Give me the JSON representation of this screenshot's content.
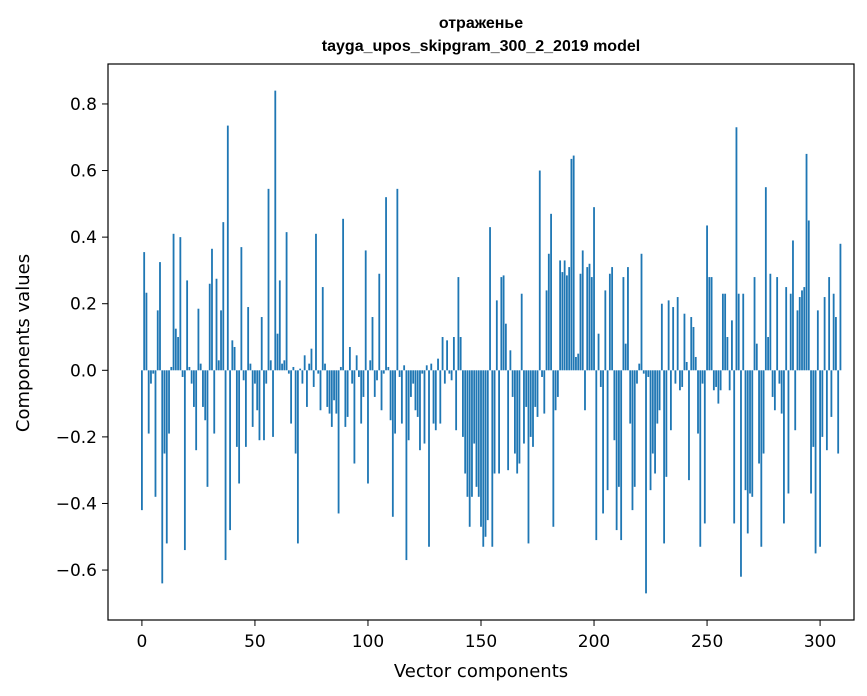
{
  "colors": {
    "bar": "#1f77b4",
    "axis": "#000000",
    "background": "#ffffff"
  },
  "chart_data": {
    "type": "bar",
    "title": "отраженье",
    "subtitle": "tayga_upos_skipgram_300_2_2019 model",
    "xlabel": "Vector components",
    "ylabel": "Components values",
    "xlim": [
      -15,
      315
    ],
    "ylim": [
      -0.75,
      0.92
    ],
    "xticks": [
      0,
      50,
      100,
      150,
      200,
      250,
      300
    ],
    "xtick_labels": [
      "0",
      "50",
      "100",
      "150",
      "200",
      "250",
      "300"
    ],
    "yticks": [
      -0.6,
      -0.4,
      -0.2,
      0.0,
      0.2,
      0.4,
      0.6,
      0.8
    ],
    "ytick_labels": [
      "−0.6",
      "−0.4",
      "−0.2",
      "0.0",
      "0.2",
      "0.4",
      "0.6",
      "0.8"
    ],
    "grid": false,
    "values": [
      -0.42,
      0.355,
      0.233,
      -0.19,
      -0.04,
      -0.01,
      -0.38,
      0.18,
      0.325,
      -0.64,
      -0.25,
      -0.52,
      -0.19,
      0.01,
      0.41,
      0.125,
      0.1,
      0.4,
      -0.02,
      -0.54,
      0.27,
      0.01,
      -0.04,
      -0.11,
      -0.24,
      0.185,
      0.02,
      -0.11,
      -0.15,
      -0.35,
      0.26,
      0.365,
      -0.19,
      0.275,
      0.03,
      0.18,
      0.445,
      -0.57,
      0.735,
      -0.48,
      0.09,
      0.07,
      -0.23,
      -0.34,
      0.37,
      -0.03,
      -0.23,
      0.19,
      0.02,
      -0.17,
      -0.04,
      -0.12,
      -0.21,
      0.16,
      -0.21,
      -0.04,
      0.545,
      0.03,
      -0.2,
      0.84,
      0.11,
      0.27,
      0.02,
      0.03,
      0.415,
      -0.01,
      -0.16,
      0.01,
      -0.25,
      -0.52,
      0.005,
      -0.04,
      0.045,
      -0.11,
      0.02,
      0.065,
      -0.05,
      0.41,
      -0.01,
      -0.12,
      0.25,
      0.02,
      -0.11,
      -0.13,
      -0.17,
      -0.09,
      -0.13,
      -0.43,
      0.01,
      0.455,
      -0.17,
      -0.14,
      0.07,
      -0.04,
      -0.28,
      0.045,
      -0.02,
      -0.16,
      -0.08,
      0.36,
      -0.34,
      0.03,
      0.16,
      -0.08,
      -0.03,
      0.29,
      -0.12,
      -0.01,
      0.52,
      0.01,
      -0.15,
      -0.44,
      -0.19,
      0.545,
      -0.02,
      -0.16,
      0.015,
      -0.57,
      -0.21,
      -0.08,
      -0.04,
      -0.12,
      -0.14,
      -0.24,
      -0.01,
      -0.22,
      0.015,
      -0.53,
      0.02,
      -0.16,
      -0.18,
      0.035,
      -0.16,
      0.1,
      -0.04,
      0.09,
      -0.01,
      -0.03,
      0.1,
      -0.18,
      0.28,
      0.1,
      -0.2,
      -0.31,
      -0.38,
      -0.47,
      -0.38,
      -0.22,
      -0.35,
      -0.38,
      -0.47,
      -0.53,
      -0.5,
      -0.45,
      0.43,
      -0.53,
      -0.31,
      0.21,
      -0.31,
      0.28,
      0.285,
      0.14,
      -0.3,
      0.06,
      -0.08,
      -0.25,
      -0.31,
      -0.28,
      0.23,
      -0.22,
      -0.11,
      -0.52,
      -0.2,
      -0.23,
      -0.11,
      -0.14,
      0.6,
      -0.02,
      -0.13,
      0.24,
      0.35,
      0.47,
      -0.47,
      -0.12,
      -0.08,
      0.33,
      0.295,
      0.33,
      0.285,
      0.31,
      0.635,
      0.645,
      0.04,
      0.05,
      0.29,
      0.36,
      -0.12,
      0.31,
      0.32,
      0.28,
      0.49,
      -0.51,
      0.11,
      -0.05,
      -0.43,
      0.24,
      -0.36,
      0.29,
      0.31,
      -0.21,
      -0.48,
      -0.35,
      -0.51,
      0.28,
      0.08,
      0.31,
      -0.16,
      -0.42,
      -0.35,
      -0.04,
      0.02,
      0.35,
      -0.01,
      -0.67,
      -0.02,
      -0.36,
      -0.25,
      -0.31,
      -0.16,
      -0.12,
      0.2,
      -0.52,
      -0.32,
      0.21,
      -0.18,
      0.19,
      -0.04,
      0.22,
      -0.06,
      -0.05,
      0.17,
      0.025,
      -0.33,
      0.16,
      0.13,
      0.04,
      -0.19,
      -0.53,
      -0.04,
      -0.46,
      0.435,
      0.28,
      0.28,
      -0.06,
      -0.05,
      -0.1,
      -0.06,
      0.23,
      0.23,
      0.1,
      -0.06,
      0.15,
      -0.46,
      0.73,
      0.23,
      -0.62,
      0.23,
      -0.36,
      -0.49,
      -0.37,
      -0.38,
      0.28,
      0.08,
      -0.28,
      -0.53,
      -0.25,
      0.55,
      0.1,
      0.29,
      -0.08,
      -0.12,
      0.28,
      -0.04,
      -0.13,
      -0.46,
      0.25,
      -0.37,
      0.23,
      0.39,
      -0.18,
      0.18,
      0.22,
      0.24,
      0.25,
      0.65,
      0.45,
      -0.37,
      -0.23,
      -0.55,
      0.18,
      -0.53,
      -0.2,
      0.22,
      -0.24,
      0.28,
      -0.14,
      0.23,
      0.16,
      -0.25,
      0.38
    ]
  }
}
